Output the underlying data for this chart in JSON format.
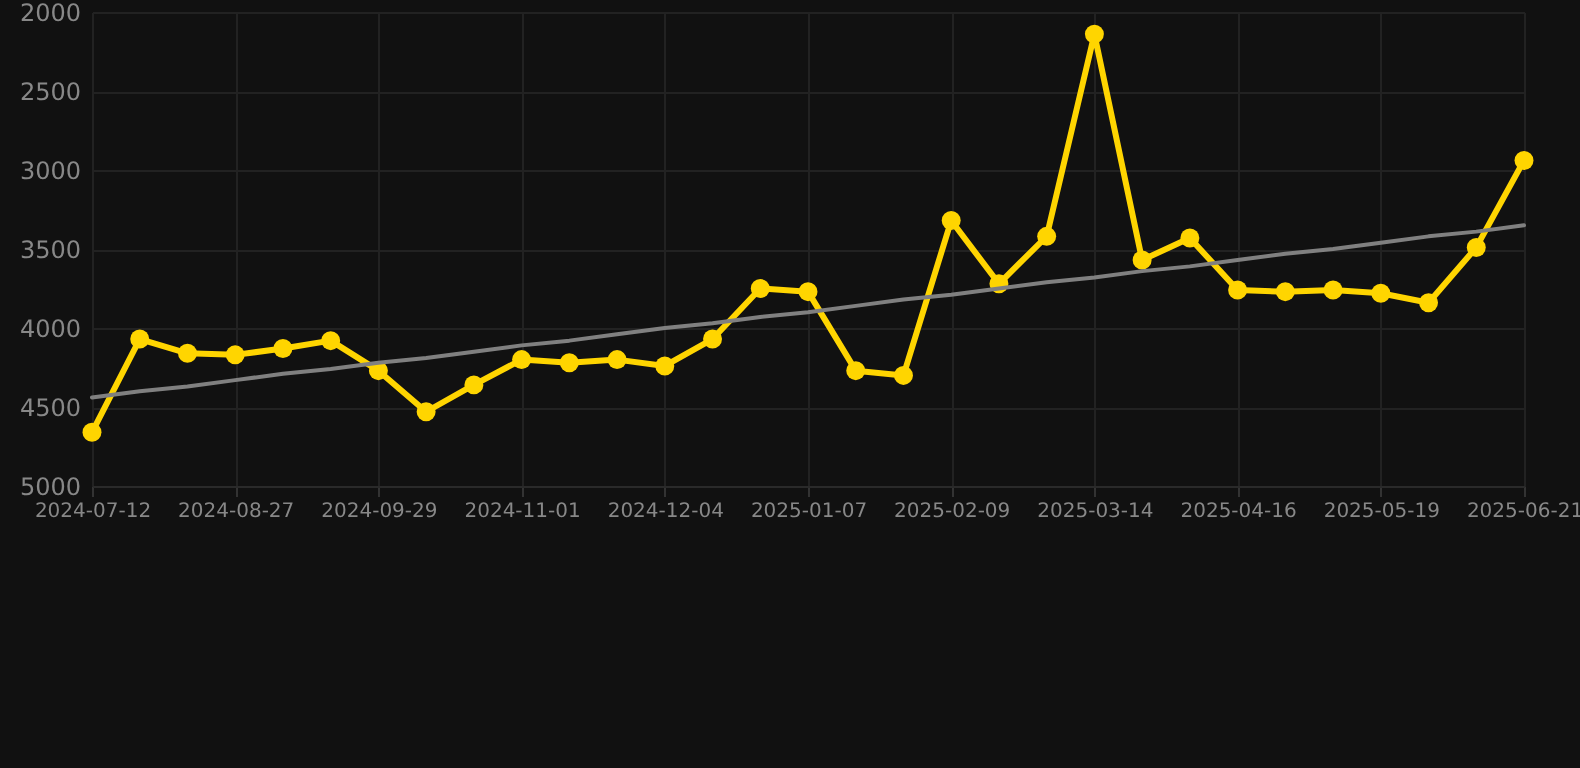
{
  "chart_data": {
    "type": "line",
    "categories": [
      "2024-07-12",
      null,
      null,
      "2024-08-27",
      null,
      null,
      "2024-09-29",
      null,
      null,
      "2024-11-01",
      null,
      null,
      "2024-12-04",
      null,
      null,
      "2025-01-07",
      null,
      null,
      "2025-02-09",
      null,
      null,
      "2025-03-14",
      null,
      null,
      "2025-04-16",
      null,
      null,
      "2025-05-19",
      null,
      null,
      "2025-06-21"
    ],
    "series": [
      {
        "color": "#ffd500",
        "marker": "circle",
        "values": [
          4660,
          4070,
          4160,
          4170,
          4130,
          4080,
          4270,
          4530,
          4360,
          4200,
          4220,
          4200,
          4240,
          4070,
          3750,
          3770,
          4270,
          4300,
          3320,
          3720,
          3420,
          2140,
          3570,
          3430,
          3760,
          3770,
          3760,
          3780,
          3840,
          3490,
          2940
        ]
      },
      {
        "type": "line",
        "color": "#808080",
        "marker": "none",
        "values": [
          4440,
          4400,
          4370,
          4330,
          4290,
          4260,
          4220,
          4190,
          4150,
          4110,
          4080,
          4040,
          4000,
          3970,
          3930,
          3900,
          3860,
          3820,
          3790,
          3750,
          3710,
          3680,
          3640,
          3610,
          3570,
          3530,
          3500,
          3460,
          3420,
          3390,
          3350
        ]
      }
    ],
    "ylim": [
      5000,
      2000
    ],
    "yticks": [
      2000,
      2500,
      3000,
      3500,
      4000,
      4500,
      5000
    ],
    "grid": true
  }
}
